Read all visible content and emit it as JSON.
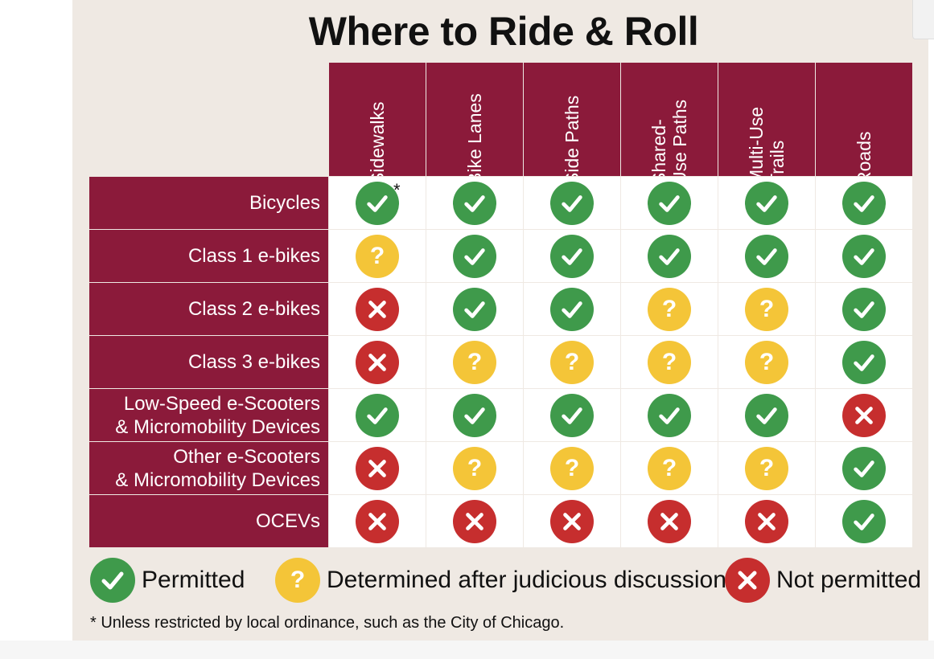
{
  "title": "Where to Ride & Roll",
  "icons": [
    "bicycle-icon",
    "scooter-icon"
  ],
  "colors": {
    "header_bg": "#8b1a3a",
    "permitted": "#3f9a4b",
    "discussion": "#f4c538",
    "not_permitted": "#c62e2e",
    "poster_bg": "#efe9e3"
  },
  "columns": [
    "Sidewalks",
    "Bike Lanes",
    "Side Paths",
    "Shared-\nUse Paths",
    "Multi-Use\nTrails",
    "Roads"
  ],
  "rows": [
    {
      "label": "Bicycles",
      "values": [
        "yes",
        "yes",
        "yes",
        "yes",
        "yes",
        "yes"
      ]
    },
    {
      "label": "Class 1 e-bikes",
      "values": [
        "maybe",
        "yes",
        "yes",
        "yes",
        "yes",
        "yes"
      ]
    },
    {
      "label": "Class 2 e-bikes",
      "values": [
        "no",
        "yes",
        "yes",
        "maybe",
        "maybe",
        "yes"
      ]
    },
    {
      "label": "Class 3 e-bikes",
      "values": [
        "no",
        "maybe",
        "maybe",
        "maybe",
        "maybe",
        "yes"
      ]
    },
    {
      "label": "Low-Speed e-Scooters\n& Micromobility Devices",
      "values": [
        "yes",
        "yes",
        "yes",
        "yes",
        "yes",
        "no"
      ]
    },
    {
      "label": "Other e-Scooters\n& Micromobility Devices",
      "values": [
        "no",
        "maybe",
        "maybe",
        "maybe",
        "maybe",
        "yes"
      ]
    },
    {
      "label": "OCEVs",
      "values": [
        "no",
        "no",
        "no",
        "no",
        "no",
        "yes"
      ]
    }
  ],
  "asterisk_marker": "*",
  "legend": {
    "permitted": "Permitted",
    "discussion": "Determined after judicious discussion",
    "not_permitted": "Not permitted"
  },
  "question_glyph": "?",
  "footnote": "* Unless restricted by local ordinance, such as the City of Chicago."
}
